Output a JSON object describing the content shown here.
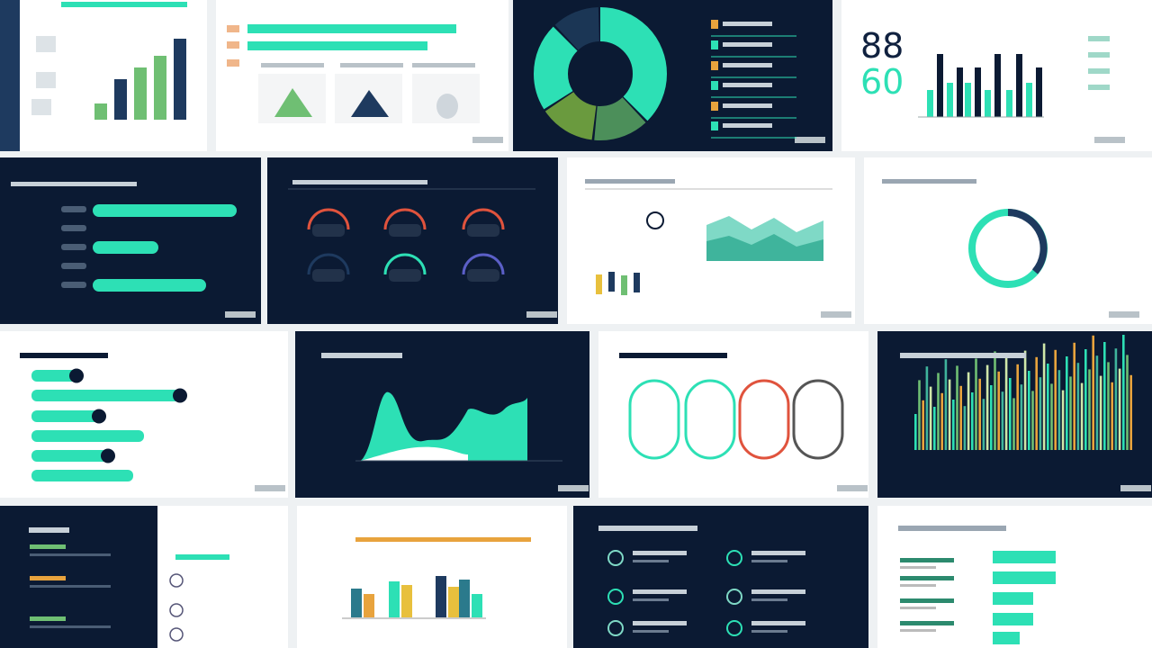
{
  "stat_tile": {
    "top_figure": 88,
    "bottom_figure": 60
  }
}
